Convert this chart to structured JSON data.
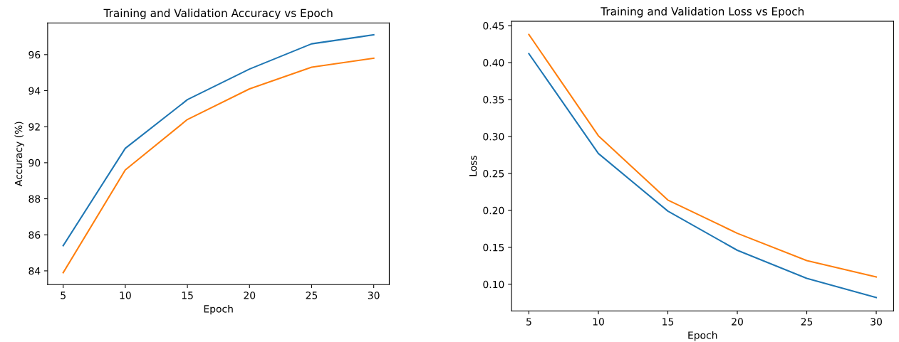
{
  "chart_data": [
    {
      "type": "line",
      "title": "Training and Validation Accuracy vs Epoch",
      "xlabel": "Epoch",
      "ylabel": "Accuracy (%)",
      "x": [
        5,
        10,
        15,
        20,
        25,
        30
      ],
      "series": [
        {
          "color": "#1f77b4",
          "values": [
            85.4,
            90.8,
            93.5,
            95.2,
            96.6,
            97.1
          ]
        },
        {
          "color": "#ff7f0e",
          "values": [
            83.9,
            89.6,
            92.4,
            94.1,
            95.3,
            95.8
          ]
        }
      ],
      "xlim": [
        3.75,
        31.25
      ],
      "xticks": [
        5,
        10,
        15,
        20,
        25,
        30
      ],
      "ylim": [
        83.24,
        97.76
      ],
      "yticks": [
        84,
        86,
        88,
        90,
        92,
        94,
        96
      ],
      "grid": false
    },
    {
      "type": "line",
      "title": "Training and Validation Loss vs Epoch",
      "xlabel": "Epoch",
      "ylabel": "Loss",
      "x": [
        5,
        10,
        15,
        20,
        25,
        30
      ],
      "series": [
        {
          "color": "#1f77b4",
          "values": [
            0.412,
            0.277,
            0.199,
            0.146,
            0.108,
            0.082
          ]
        },
        {
          "color": "#ff7f0e",
          "values": [
            0.438,
            0.301,
            0.214,
            0.169,
            0.132,
            0.11
          ]
        }
      ],
      "xlim": [
        3.75,
        31.25
      ],
      "xticks": [
        5,
        10,
        15,
        20,
        25,
        30
      ],
      "ylim": [
        0.064,
        0.456
      ],
      "yticks": [
        {
          "value": 0.1,
          "label": "0.10"
        },
        {
          "value": 0.15,
          "label": "0.15"
        },
        {
          "value": 0.2,
          "label": "0.20"
        },
        {
          "value": 0.25,
          "label": "0.25"
        },
        {
          "value": 0.3,
          "label": "0.30"
        },
        {
          "value": 0.35,
          "label": "0.35"
        },
        {
          "value": 0.4,
          "label": "0.40"
        },
        {
          "value": 0.45,
          "label": "0.45"
        }
      ],
      "grid": false
    }
  ]
}
